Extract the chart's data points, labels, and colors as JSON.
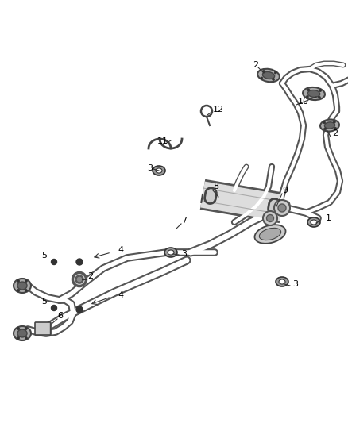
{
  "background_color": "#ffffff",
  "line_color": "#444444",
  "fig_width": 4.38,
  "fig_height": 5.33,
  "dpi": 100,
  "pipe_color": "#555555",
  "pipe_inner": "#ffffff",
  "part_fill": "#888888"
}
